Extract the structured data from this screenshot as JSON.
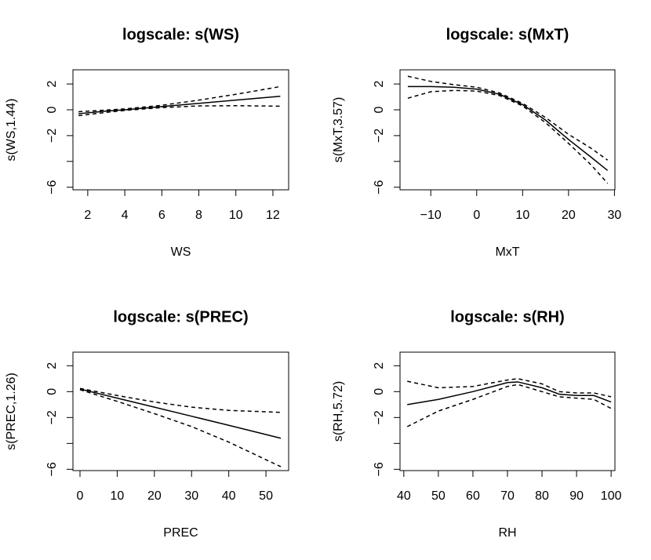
{
  "chart_data": [
    {
      "type": "line",
      "title": "logscale: s(WS)",
      "xlabel": "WS",
      "ylabel": "s(WS,1.44)",
      "x": [
        1.5,
        3,
        4,
        6,
        8,
        10,
        12.4
      ],
      "series": [
        {
          "color": "#000000",
          "dash": false,
          "values": [
            -0.3,
            -0.1,
            0,
            0.25,
            0.5,
            0.75,
            1.05
          ]
        },
        {
          "color": "#000000",
          "dash": true,
          "values": [
            -0.15,
            -0.02,
            0.07,
            0.35,
            0.75,
            1.2,
            1.8
          ]
        },
        {
          "color": "#000000",
          "dash": true,
          "values": [
            -0.45,
            -0.2,
            -0.05,
            0.17,
            0.3,
            0.32,
            0.28
          ]
        }
      ],
      "xlim": [
        1.2,
        12.85
      ],
      "xticks": [
        2,
        4,
        6,
        8,
        10,
        12
      ],
      "ylim": [
        -6.2,
        3.1
      ],
      "yticks": [
        {
          "value": -6,
          "label": "−6"
        },
        {
          "value": -4,
          "label": null
        },
        {
          "value": -2,
          "label": "−2"
        },
        0,
        2
      ]
    },
    {
      "type": "line",
      "title": "logscale: s(MxT)",
      "xlabel": "MxT",
      "ylabel": "s(MxT,3.57)",
      "x": [
        -15,
        -10,
        -5,
        0,
        5,
        10,
        15,
        20,
        25,
        28.5
      ],
      "series": [
        {
          "color": "#000000",
          "dash": false,
          "values": [
            1.8,
            1.8,
            1.75,
            1.6,
            1.2,
            0.4,
            -0.8,
            -2.3,
            -3.7,
            -4.7
          ]
        },
        {
          "color": "#000000",
          "dash": true,
          "values": [
            2.6,
            2.2,
            1.95,
            1.75,
            1.3,
            0.5,
            -0.6,
            -1.9,
            -3.0,
            -3.9
          ]
        },
        {
          "color": "#000000",
          "dash": true,
          "values": [
            0.9,
            1.4,
            1.5,
            1.45,
            1.1,
            0.3,
            -1.0,
            -2.6,
            -4.3,
            -5.7
          ]
        }
      ],
      "xlim": [
        -16.7,
        30.1
      ],
      "xticks": [
        {
          "value": -10,
          "label": "−10"
        },
        0,
        10,
        20,
        30
      ],
      "ylim": [
        -6.2,
        3.1
      ],
      "yticks": [
        {
          "value": -6,
          "label": "−6"
        },
        {
          "value": -4,
          "label": null
        },
        {
          "value": -2,
          "label": "−2"
        },
        0,
        2
      ]
    },
    {
      "type": "line",
      "title": "logscale: s(PREC)",
      "xlabel": "PREC",
      "ylabel": "s(PREC,1.26)",
      "x": [
        0,
        10,
        20,
        30,
        40,
        54
      ],
      "series": [
        {
          "color": "#000000",
          "dash": false,
          "values": [
            0.2,
            -0.5,
            -1.2,
            -1.9,
            -2.6,
            -3.6
          ]
        },
        {
          "color": "#000000",
          "dash": true,
          "values": [
            0.25,
            -0.3,
            -0.8,
            -1.2,
            -1.45,
            -1.6
          ]
        },
        {
          "color": "#000000",
          "dash": true,
          "values": [
            0.15,
            -0.75,
            -1.7,
            -2.7,
            -3.9,
            -5.8
          ]
        }
      ],
      "xlim": [
        -1.9,
        56.1
      ],
      "xticks": [
        0,
        10,
        20,
        30,
        40,
        50
      ],
      "ylim": [
        -6.1,
        3.05
      ],
      "yticks": [
        {
          "value": -6,
          "label": "−6"
        },
        {
          "value": -4,
          "label": null
        },
        {
          "value": -2,
          "label": "−2"
        },
        0,
        2
      ]
    },
    {
      "type": "line",
      "title": "logscale: s(RH)",
      "xlabel": "RH",
      "ylabel": "s(RH,5.72)",
      "x": [
        41,
        50,
        60,
        70,
        73,
        80,
        85,
        90,
        95,
        100
      ],
      "series": [
        {
          "color": "#000000",
          "dash": false,
          "values": [
            -1.0,
            -0.6,
            0.0,
            0.7,
            0.75,
            0.3,
            -0.2,
            -0.3,
            -0.3,
            -0.8
          ]
        },
        {
          "color": "#000000",
          "dash": true,
          "values": [
            0.8,
            0.3,
            0.4,
            0.9,
            1.0,
            0.6,
            0.0,
            -0.1,
            -0.1,
            -0.4
          ]
        },
        {
          "color": "#000000",
          "dash": true,
          "values": [
            -2.7,
            -1.5,
            -0.6,
            0.4,
            0.55,
            0.0,
            -0.4,
            -0.5,
            -0.6,
            -1.3
          ]
        }
      ],
      "xlim": [
        38.9,
        101.1
      ],
      "xticks": [
        40,
        50,
        60,
        70,
        80,
        90,
        100
      ],
      "ylim": [
        -6.1,
        3.05
      ],
      "yticks": [
        {
          "value": -6,
          "label": "−6"
        },
        {
          "value": -4,
          "label": null
        },
        {
          "value": -2,
          "label": "−2"
        },
        0,
        2
      ]
    }
  ]
}
